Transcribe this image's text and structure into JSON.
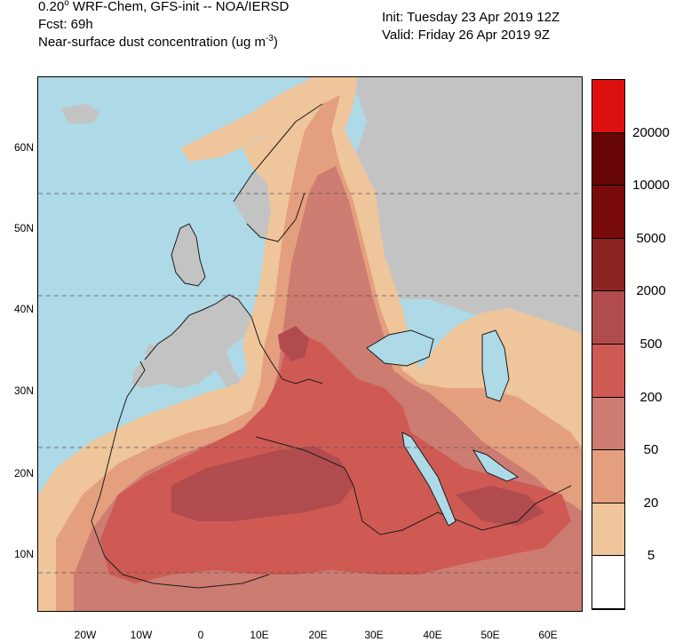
{
  "header": {
    "line1_prefix": "0.20",
    "line1_deg": "o",
    "line1_rest": " WRF-Chem, GFS-init -- NOA/IERSD",
    "line2": "Fcst: 69h",
    "line3_text": "Near-surface dust concentration (ug m",
    "line3_sup": "-3",
    "line3_close": ")",
    "init": "Init: Tuesday 23 Apr 2019  12Z",
    "valid": "Valid: Friday 26 Apr 2019  9Z"
  },
  "map": {
    "lat_labels": [
      "60N",
      "50N",
      "40N",
      "30N",
      "20N",
      "10N"
    ],
    "lon_labels": [
      "20W",
      "10W",
      "0",
      "10E",
      "20E",
      "30E",
      "40E",
      "50E",
      "60E"
    ],
    "colors": {
      "sea": "#aed9e6",
      "land": "#c3c3c3",
      "lev5": "#efc59b",
      "lev20": "#e49f7e",
      "lev50": "#cd7c71",
      "lev200": "#cf5a54",
      "lev500": "#b04c4d",
      "coast": "#1c1c1c"
    }
  },
  "colorbar": {
    "levels": [
      "5",
      "20",
      "50",
      "200",
      "500",
      "2000",
      "5000",
      "10000",
      "20000"
    ],
    "colors": [
      "#ffffff",
      "#efc59b",
      "#e49f7e",
      "#cd7c71",
      "#cf5a54",
      "#b04c4d",
      "#8c2424",
      "#7a0b0b",
      "#680505",
      "#de0f0f"
    ]
  }
}
